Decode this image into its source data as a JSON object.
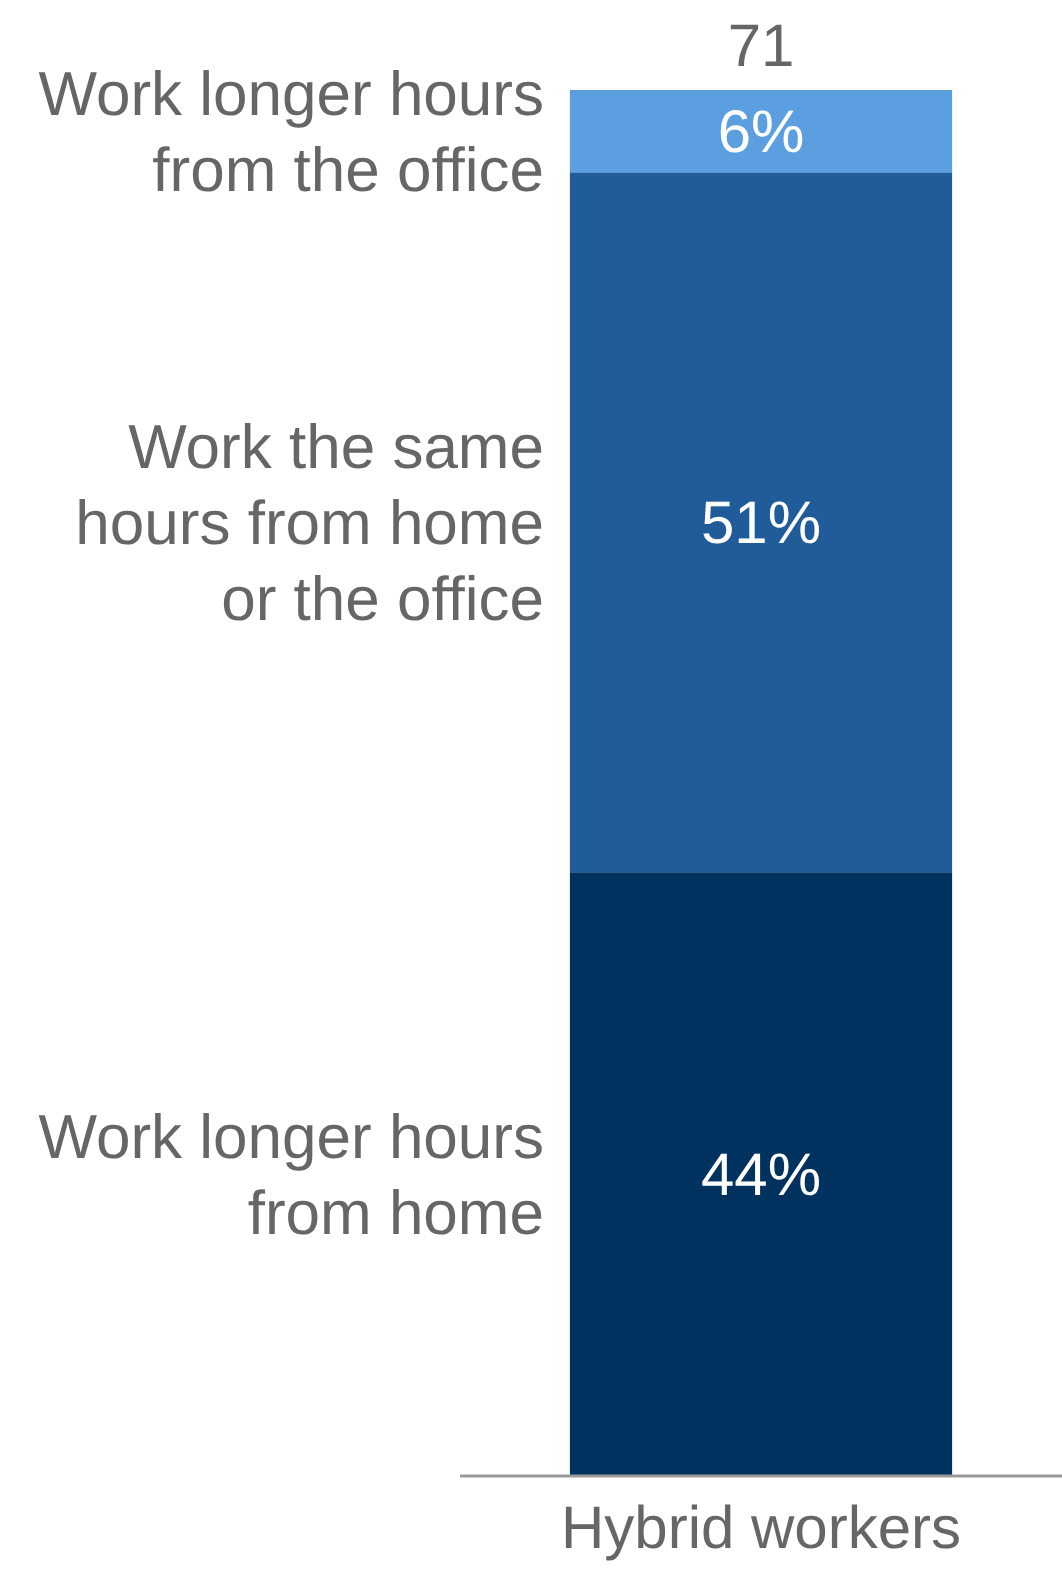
{
  "chart_data": {
    "type": "bar",
    "stacked": true,
    "categories": [
      "Hybrid workers"
    ],
    "series": [
      {
        "name": "Work longer hours from home",
        "color": "#00325f",
        "values": [
          44
        ],
        "value_labels": [
          "44%"
        ]
      },
      {
        "name": "Work the same hours from home or the office",
        "color": "#1f5c99",
        "values": [
          51
        ],
        "value_labels": [
          "51%"
        ]
      },
      {
        "name": "Work longer hours from the office",
        "color": "#5b9fe0",
        "values": [
          6
        ],
        "value_labels": [
          "6%"
        ]
      }
    ],
    "annotations": [
      {
        "text": "71",
        "x": "Hybrid workers",
        "y": 101
      }
    ]
  }
}
